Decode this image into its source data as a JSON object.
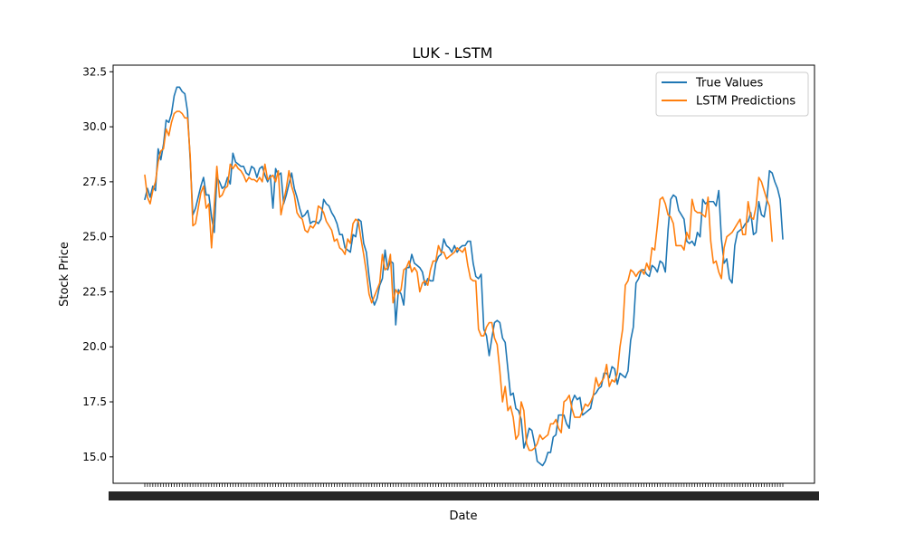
{
  "chart_data": {
    "type": "line",
    "title": "LUK - LSTM",
    "xlabel": "Date",
    "ylabel": "Stock Price",
    "ylim": [
      13.8,
      32.8
    ],
    "yticks": [
      "15.0",
      "17.5",
      "20.0",
      "22.5",
      "25.0",
      "27.5",
      "30.0",
      "32.5"
    ],
    "grid": false,
    "legend_position": "top-right",
    "series": [
      {
        "name": "True Values",
        "color": "#1f77b4",
        "values": [
          26.7,
          27.2,
          26.8,
          27.3,
          27.1,
          29.0,
          28.5,
          29.2,
          30.3,
          30.2,
          30.6,
          31.4,
          31.8,
          31.8,
          31.6,
          31.5,
          30.7,
          28.5,
          26.0,
          26.3,
          26.8,
          27.3,
          27.7,
          26.9,
          26.9,
          25.9,
          25.2,
          27.7,
          27.5,
          27.2,
          27.3,
          27.7,
          27.4,
          28.8,
          28.4,
          28.3,
          28.2,
          28.2,
          27.9,
          27.8,
          28.2,
          28.1,
          27.7,
          28.1,
          28.2,
          27.8,
          27.5,
          27.8,
          26.3,
          28.1,
          27.8,
          27.9,
          26.5,
          26.9,
          27.4,
          27.9,
          27.2,
          26.8,
          26.3,
          25.9,
          26.0,
          26.2,
          25.6,
          25.7,
          25.7,
          25.6,
          25.8,
          26.7,
          26.5,
          26.4,
          26.1,
          25.9,
          25.6,
          25.1,
          25.1,
          24.5,
          24.4,
          24.3,
          25.1,
          25.0,
          25.8,
          25.7,
          24.7,
          24.3,
          23.2,
          22.3,
          21.9,
          22.2,
          22.8,
          23.1,
          24.4,
          23.5,
          23.9,
          23.8,
          21.0,
          22.6,
          22.4,
          21.9,
          23.6,
          23.6,
          24.2,
          23.8,
          23.7,
          23.6,
          23.4,
          22.8,
          23.1,
          23.0,
          23.0,
          23.8,
          24.1,
          24.2,
          24.9,
          24.6,
          24.5,
          24.3,
          24.6,
          24.3,
          24.5,
          24.6,
          24.6,
          24.8,
          24.8,
          23.8,
          23.2,
          23.1,
          23.3,
          20.8,
          20.5,
          19.6,
          20.4,
          21.1,
          21.2,
          21.1,
          20.4,
          20.2,
          19.0,
          17.8,
          17.9,
          17.2,
          17.1,
          16.7,
          15.4,
          15.8,
          16.3,
          16.2,
          15.6,
          14.8,
          14.7,
          14.6,
          14.8,
          15.2,
          15.2,
          15.9,
          16.0,
          16.9,
          16.9,
          16.9,
          16.5,
          16.3,
          17.5,
          17.8,
          17.6,
          17.7,
          16.9,
          17.0,
          17.1,
          17.2,
          17.8,
          17.9,
          18.1,
          18.2,
          18.8,
          18.8,
          18.6,
          19.1,
          19.0,
          18.3,
          18.8,
          18.7,
          18.6,
          18.9,
          20.3,
          20.9,
          22.9,
          23.1,
          23.5,
          23.5,
          23.3,
          23.2,
          23.7,
          23.6,
          23.4,
          23.9,
          23.8,
          23.4,
          25.3,
          26.7,
          26.9,
          26.8,
          26.2,
          26.0,
          25.8,
          24.8,
          24.7,
          24.8,
          24.6,
          25.2,
          25.0,
          26.7,
          26.5,
          26.6,
          26.6,
          26.6,
          26.4,
          27.1,
          24.9,
          23.8,
          24.0,
          23.1,
          22.9,
          24.6,
          25.2,
          25.3,
          25.4,
          25.6,
          25.7,
          26.1,
          25.1,
          25.2,
          26.6,
          26.0,
          25.9,
          26.6,
          28.0,
          27.9,
          27.5,
          27.2,
          26.7,
          24.9
        ]
      },
      {
        "name": "LSTM Predictions",
        "color": "#ff7f0e",
        "values": [
          27.8,
          26.8,
          26.5,
          27.1,
          27.5,
          28.4,
          28.9,
          29.0,
          29.9,
          29.6,
          30.2,
          30.6,
          30.7,
          30.7,
          30.6,
          30.4,
          30.4,
          28.7,
          25.5,
          25.6,
          26.3,
          27.0,
          27.3,
          26.3,
          26.5,
          24.5,
          26.4,
          28.2,
          26.8,
          26.9,
          27.2,
          27.3,
          28.3,
          28.1,
          28.3,
          28.1,
          28.0,
          27.8,
          27.5,
          27.7,
          27.6,
          27.6,
          27.5,
          27.7,
          27.5,
          28.3,
          27.6,
          27.7,
          27.8,
          27.5,
          28.0,
          26.0,
          26.6,
          27.2,
          28.0,
          27.3,
          26.9,
          26.1,
          25.9,
          25.8,
          25.3,
          25.2,
          25.5,
          25.4,
          25.6,
          26.4,
          26.3,
          26.1,
          25.7,
          25.5,
          25.3,
          24.8,
          24.9,
          24.5,
          24.4,
          24.2,
          24.9,
          24.7,
          25.6,
          25.8,
          25.7,
          24.9,
          24.2,
          23.4,
          22.4,
          22.0,
          22.3,
          22.6,
          22.9,
          24.2,
          23.5,
          23.6,
          24.2,
          22.0,
          22.6,
          22.4,
          22.6,
          23.5,
          23.6,
          23.9,
          23.4,
          23.6,
          23.4,
          22.5,
          22.9,
          23.0,
          22.8,
          23.5,
          23.9,
          23.9,
          24.6,
          24.3,
          24.3,
          24.0,
          24.1,
          24.2,
          24.3,
          24.5,
          24.4,
          24.3,
          24.5,
          23.7,
          23.1,
          23.0,
          23.0,
          20.8,
          20.5,
          20.5,
          20.9,
          21.1,
          21.1,
          20.4,
          20.1,
          18.9,
          17.5,
          18.2,
          17.1,
          17.3,
          16.8,
          15.8,
          16.0,
          17.5,
          17.1,
          15.6,
          15.3,
          15.3,
          15.4,
          15.6,
          16.0,
          15.8,
          15.9,
          16.0,
          16.5,
          16.5,
          16.7,
          16.3,
          16.1,
          17.5,
          17.6,
          17.8,
          17.2,
          16.8,
          16.8,
          16.8,
          17.1,
          17.4,
          17.3,
          17.5,
          17.8,
          18.6,
          18.2,
          18.4,
          18.6,
          19.2,
          18.2,
          18.5,
          18.4,
          18.8,
          20.0,
          20.8,
          22.8,
          23.0,
          23.5,
          23.4,
          23.2,
          23.4,
          23.5,
          23.3,
          23.8,
          23.5,
          24.5,
          24.4,
          25.5,
          26.7,
          26.8,
          26.5,
          26.0,
          25.9,
          25.6,
          24.6,
          24.6,
          24.6,
          24.4,
          25.2,
          24.9,
          26.7,
          26.2,
          26.1,
          26.1,
          26.0,
          25.9,
          26.8,
          24.8,
          23.8,
          23.9,
          23.4,
          23.1,
          24.5,
          25.0,
          25.1,
          25.2,
          25.4,
          25.6,
          25.8,
          25.1,
          25.1,
          26.6,
          25.9,
          25.8,
          26.4,
          27.7,
          27.5,
          27.1,
          26.7,
          26.4,
          24.8
        ]
      }
    ]
  }
}
